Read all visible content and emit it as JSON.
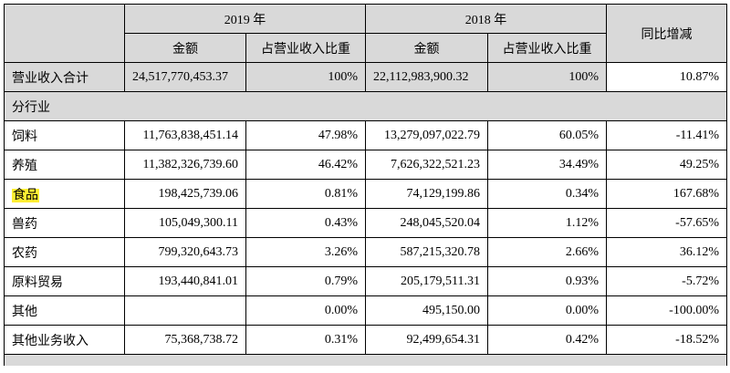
{
  "header": {
    "year_2019": "2019 年",
    "year_2018": "2018 年",
    "yoy": "同比增减",
    "amount": "金额",
    "ratio": "占营业收入比重"
  },
  "total": {
    "label": "营业收入合计",
    "amt2019": "24,517,770,453.37",
    "ratio2019": "100%",
    "amt2018": "22,112,983,900.32",
    "ratio2018": "100%",
    "yoy": "10.87%"
  },
  "section_label": "分行业",
  "rows": [
    {
      "label": "饲料",
      "amt2019": "11,763,838,451.14",
      "ratio2019": "47.98%",
      "amt2018": "13,279,097,022.79",
      "ratio2018": "60.05%",
      "yoy": "-11.41%"
    },
    {
      "label": "养殖",
      "amt2019": "11,382,326,739.60",
      "ratio2019": "46.42%",
      "amt2018": "7,626,322,521.23",
      "ratio2018": "34.49%",
      "yoy": "49.25%"
    },
    {
      "label": "食品",
      "amt2019": "198,425,739.06",
      "ratio2019": "0.81%",
      "amt2018": "74,129,199.86",
      "ratio2018": "0.34%",
      "yoy": "167.68%"
    },
    {
      "label": "兽药",
      "amt2019": "105,049,300.11",
      "ratio2019": "0.43%",
      "amt2018": "248,045,520.04",
      "ratio2018": "1.12%",
      "yoy": "-57.65%"
    },
    {
      "label": "农药",
      "amt2019": "799,320,643.73",
      "ratio2019": "3.26%",
      "amt2018": "587,215,320.78",
      "ratio2018": "2.66%",
      "yoy": "36.12%"
    },
    {
      "label": "原料贸易",
      "amt2019": "193,440,841.01",
      "ratio2019": "0.79%",
      "amt2018": "205,179,511.31",
      "ratio2018": "0.93%",
      "yoy": "-5.72%"
    },
    {
      "label": "其他",
      "amt2019": "",
      "ratio2019": "0.00%",
      "amt2018": "495,150.00",
      "ratio2018": "0.00%",
      "yoy": "-100.00%"
    },
    {
      "label": "其他业务收入",
      "amt2019": "75,368,738.72",
      "ratio2019": "0.31%",
      "amt2018": "92,499,654.31",
      "ratio2018": "0.42%",
      "yoy": "-18.52%"
    }
  ]
}
